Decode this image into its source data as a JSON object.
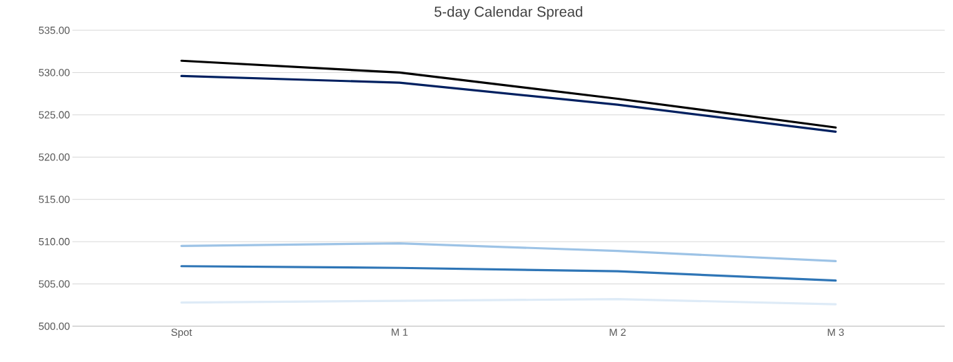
{
  "chart_data": {
    "type": "line",
    "title": "5-day Calendar Spread",
    "categories": [
      "Spot",
      "M 1",
      "M 2",
      "M 3"
    ],
    "series": [
      {
        "color": "#000000",
        "values": [
          531.4,
          530.0,
          526.9,
          523.5
        ]
      },
      {
        "color": "#002060",
        "values": [
          529.6,
          528.8,
          526.2,
          523.0
        ]
      },
      {
        "color": "#9dc3e6",
        "values": [
          509.5,
          509.8,
          508.9,
          507.7
        ]
      },
      {
        "color": "#2e75b6",
        "values": [
          507.1,
          506.9,
          506.5,
          505.4
        ]
      },
      {
        "color": "#deebf7",
        "values": [
          502.8,
          503.0,
          503.2,
          502.6
        ]
      }
    ],
    "ylim": [
      500,
      535
    ],
    "yticks": [
      {
        "value": 500,
        "label": "500.00"
      },
      {
        "value": 505,
        "label": "505.00"
      },
      {
        "value": 510,
        "label": "510.00"
      },
      {
        "value": 515,
        "label": "515.00"
      },
      {
        "value": 520,
        "label": "520.00"
      },
      {
        "value": 525,
        "label": "525.00"
      },
      {
        "value": 530,
        "label": "530.00"
      },
      {
        "value": 535,
        "label": "535.00"
      }
    ],
    "grid": "y",
    "legend": false,
    "marker": "none",
    "line_style": "solid"
  }
}
